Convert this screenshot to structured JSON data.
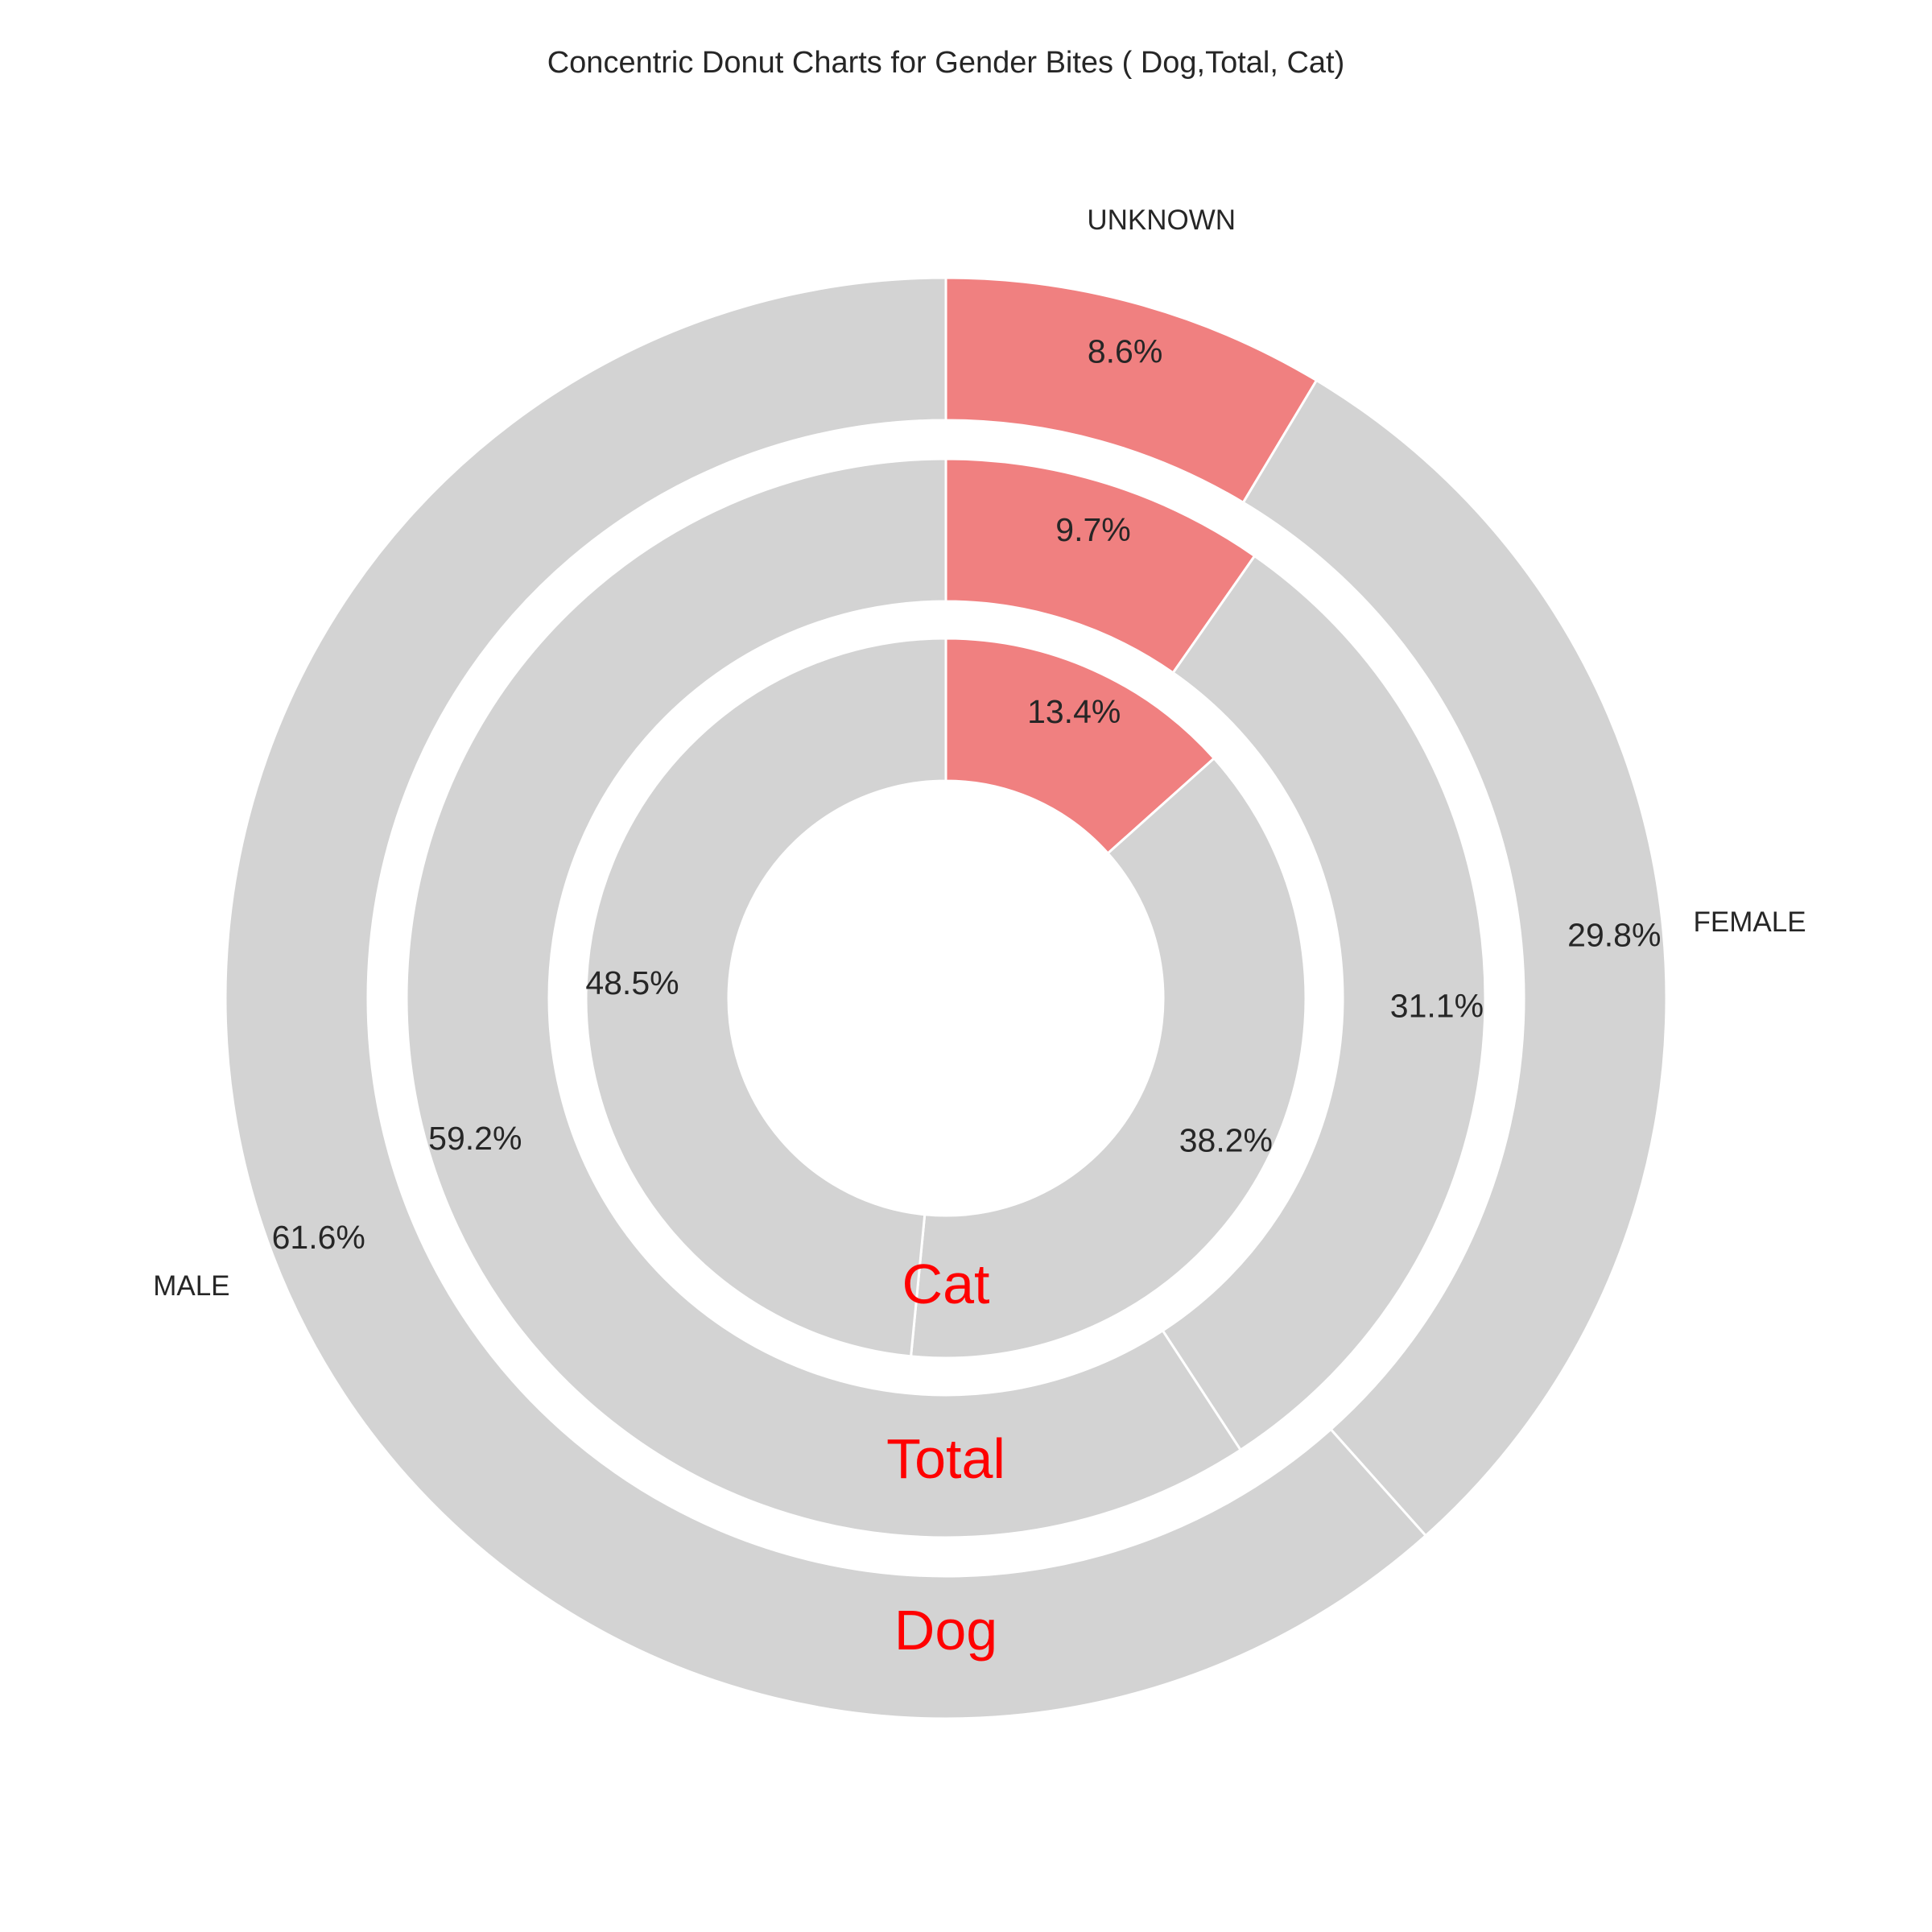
{
  "chart_data": {
    "type": "pie",
    "variant": "concentric-donut",
    "title": "Concentric Donut Charts for Gender Bites ( Dog,Total, Cat)",
    "categories": [
      "UNKNOWN",
      "FEMALE",
      "MALE"
    ],
    "colors": {
      "highlight": "#f08080",
      "base": "#d3d3d3",
      "edge": "#ffffff",
      "ring_label": "#ff0000"
    },
    "series": [
      {
        "name": "Dog",
        "values": [
          8.6,
          29.8,
          61.6
        ],
        "labels": [
          "8.6%",
          "29.8%",
          "61.6%"
        ]
      },
      {
        "name": "Total",
        "values": [
          9.7,
          31.1,
          59.2
        ],
        "labels": [
          "9.7%",
          "31.1%",
          "59.2%"
        ]
      },
      {
        "name": "Cat",
        "values": [
          13.4,
          38.2,
          48.5
        ],
        "labels": [
          "13.4%",
          "38.2%",
          "48.5%"
        ]
      }
    ],
    "start_angle": "top",
    "direction": "clockwise",
    "category_labels": "outer-ring"
  }
}
